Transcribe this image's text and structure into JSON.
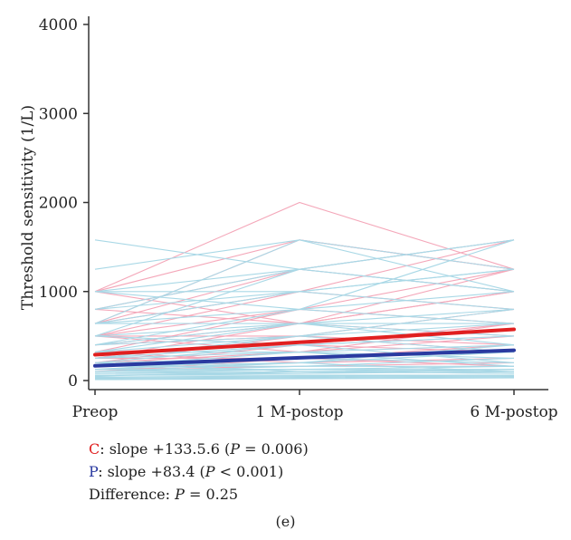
{
  "chart_data": {
    "type": "line",
    "xlabel": "",
    "ylabel": "Threshold sensitivity (1/L)",
    "categories": [
      "Preop",
      "1 M-postop",
      "6 M-postop"
    ],
    "ylim": [
      0,
      4000
    ],
    "yticks": [
      0,
      1000,
      2000,
      3000,
      4000
    ],
    "grid": false,
    "series": [
      {
        "name": "C",
        "values": [
          290,
          430,
          575
        ]
      },
      {
        "name": "P",
        "values": [
          165,
          255,
          340
        ]
      }
    ],
    "individual_lines": {
      "C": [
        [
          1000,
          2000,
          1250
        ],
        [
          1000,
          1580,
          1250
        ],
        [
          640,
          1580,
          1250
        ],
        [
          800,
          1250,
          1580
        ],
        [
          500,
          1000,
          1580
        ],
        [
          1000,
          640,
          1000
        ],
        [
          500,
          800,
          1250
        ],
        [
          640,
          1000,
          800
        ],
        [
          400,
          640,
          1000
        ],
        [
          320,
          800,
          640
        ],
        [
          500,
          500,
          800
        ],
        [
          250,
          640,
          500
        ],
        [
          320,
          400,
          640
        ],
        [
          400,
          500,
          320
        ],
        [
          200,
          320,
          500
        ],
        [
          250,
          250,
          400
        ],
        [
          320,
          200,
          250
        ],
        [
          160,
          400,
          320
        ],
        [
          125,
          160,
          200
        ],
        [
          100,
          250,
          160
        ],
        [
          800,
          640,
          1250
        ],
        [
          640,
          1250,
          1000
        ],
        [
          500,
          320,
          640
        ],
        [
          200,
          500,
          400
        ]
      ],
      "P": [
        [
          1580,
          1250,
          1580
        ],
        [
          1250,
          1580,
          1250
        ],
        [
          1000,
          1250,
          1580
        ],
        [
          640,
          1580,
          1000
        ],
        [
          800,
          1000,
          1250
        ],
        [
          1000,
          800,
          1000
        ],
        [
          640,
          1000,
          1250
        ],
        [
          500,
          640,
          800
        ],
        [
          400,
          800,
          640
        ],
        [
          320,
          500,
          800
        ],
        [
          640,
          640,
          640
        ],
        [
          500,
          400,
          500
        ],
        [
          400,
          500,
          640
        ],
        [
          320,
          320,
          400
        ],
        [
          250,
          400,
          500
        ],
        [
          200,
          250,
          320
        ],
        [
          250,
          320,
          250
        ],
        [
          160,
          200,
          400
        ],
        [
          125,
          250,
          200
        ],
        [
          100,
          160,
          250
        ],
        [
          80,
          125,
          160
        ],
        [
          200,
          100,
          125
        ],
        [
          160,
          320,
          160
        ],
        [
          125,
          200,
          320
        ],
        [
          100,
          125,
          100
        ],
        [
          80,
          100,
          80
        ],
        [
          60,
          80,
          125
        ],
        [
          800,
          1250,
          1000
        ],
        [
          1000,
          1000,
          800
        ],
        [
          640,
          800,
          1580
        ],
        [
          500,
          1250,
          1000
        ],
        [
          400,
          640,
          400
        ],
        [
          320,
          640,
          500
        ],
        [
          250,
          500,
          320
        ],
        [
          200,
          400,
          200
        ],
        [
          160,
          160,
          160
        ],
        [
          125,
          125,
          125
        ],
        [
          100,
          200,
          100
        ],
        [
          80,
          80,
          100
        ],
        [
          60,
          60,
          60
        ],
        [
          50,
          100,
          80
        ],
        [
          40,
          50,
          60
        ],
        [
          30,
          40,
          50
        ],
        [
          20,
          30,
          40
        ],
        [
          10,
          20,
          30
        ]
      ]
    },
    "colors": {
      "C_individual": "#f4a7b9",
      "P_individual": "#a9d8e6",
      "C_mean": "#e02020",
      "P_mean": "#2a3aa0",
      "axis": "#333333"
    }
  },
  "legend": {
    "c_letter": "C",
    "c_text_before": ": slope +133.5.6 (",
    "c_p": "P",
    "c_text_after": " = 0.006)",
    "p_letter": "P",
    "p_text_before": ": slope +83.4 (",
    "p_p": "P",
    "p_text_after": " < 0.001)",
    "diff_text_before": "Difference: ",
    "diff_p": "P",
    "diff_text_after": " = 0.25"
  },
  "caption": "(e)"
}
